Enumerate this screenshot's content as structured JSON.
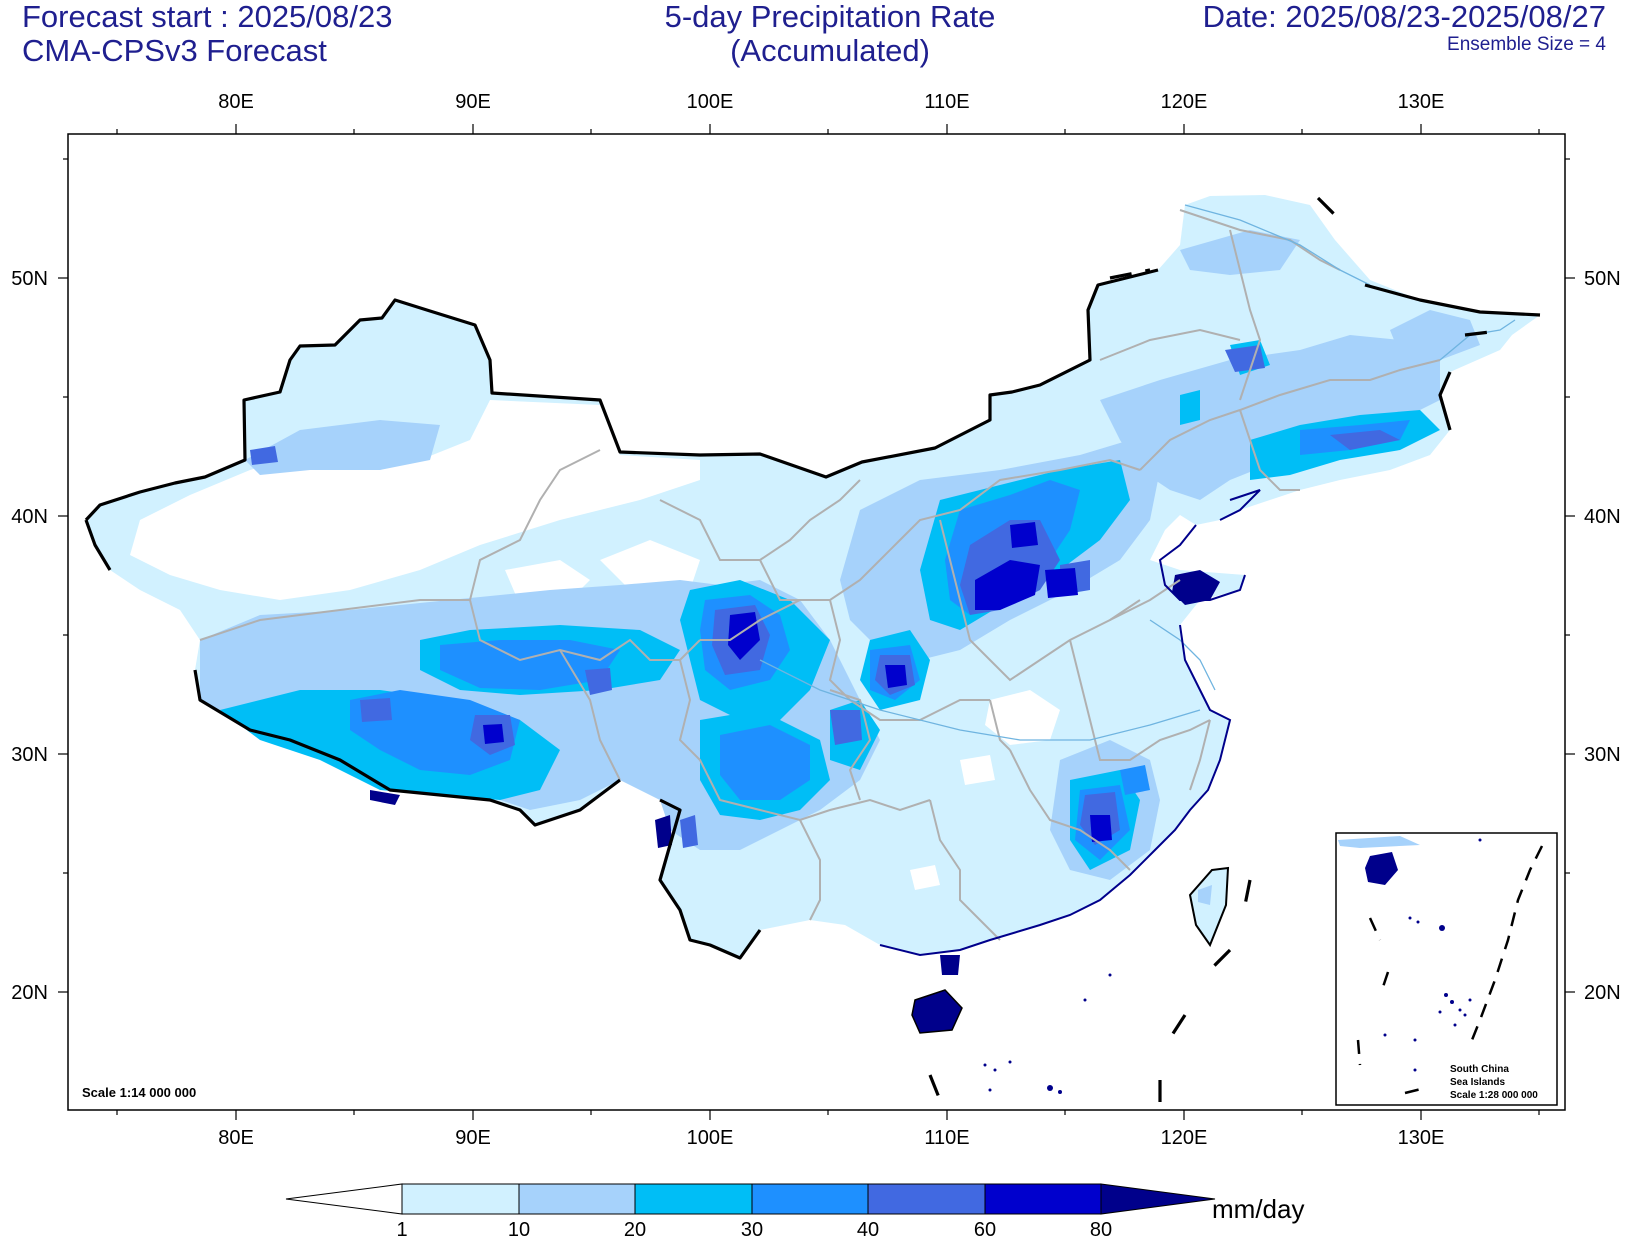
{
  "header": {
    "forecast_start": "Forecast start : 2025/08/23",
    "model": "CMA-CPSv3 Forecast",
    "title_line1": "5-day Precipitation Rate",
    "title_line2": "(Accumulated)",
    "date_range": "Date: 2025/08/23-2025/08/27",
    "ensemble": "Ensemble Size = 4"
  },
  "map": {
    "lon_labels": [
      "80E",
      "90E",
      "100E",
      "110E",
      "120E",
      "130E"
    ],
    "lat_labels": [
      "50N",
      "40N",
      "30N",
      "20N"
    ],
    "scale_main": "Scale 1:14 000 000",
    "inset": {
      "title_line1": "South China",
      "title_line2": "Sea Islands",
      "scale": "Scale 1:28 000 000"
    }
  },
  "colorbar": {
    "units": "mm/day",
    "levels": [
      "1",
      "10",
      "20",
      "30",
      "40",
      "60",
      "80"
    ],
    "colors": [
      "#ffffff",
      "#d1f1ff",
      "#a6d2fb",
      "#00bef6",
      "#1e90ff",
      "#4169e1",
      "#0000cd",
      "#00008b"
    ]
  }
}
